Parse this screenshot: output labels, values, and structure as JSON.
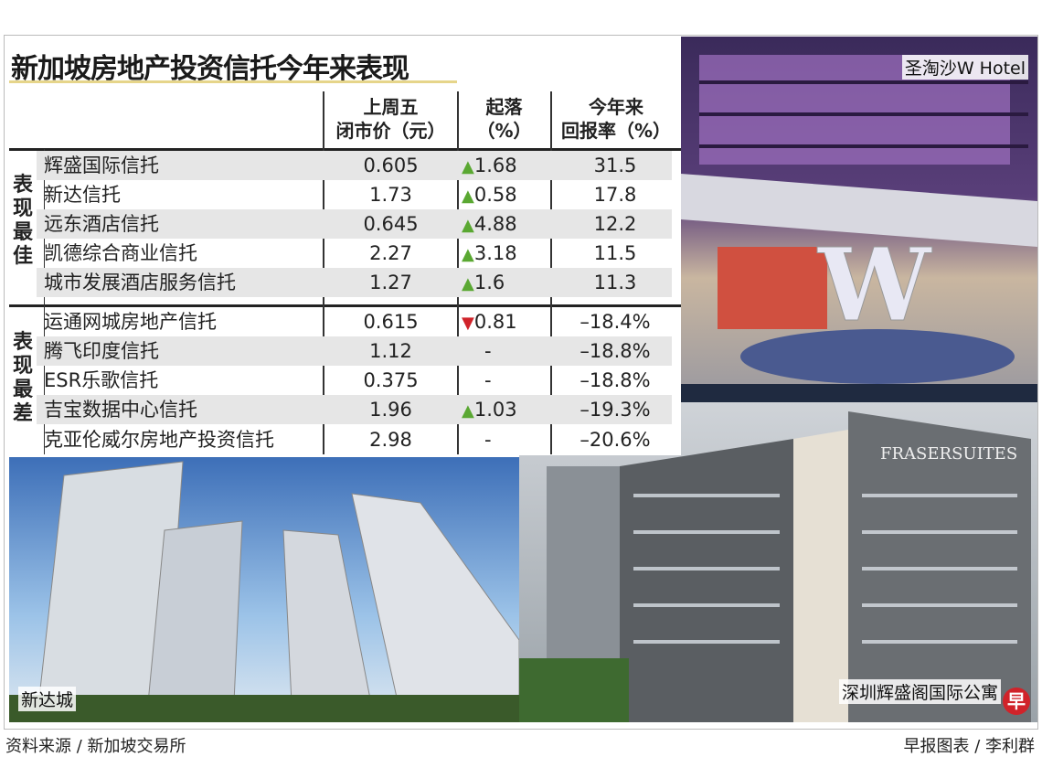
{
  "title": "新加坡房地产投资信托今年来表现",
  "chart_data": {
    "type": "table",
    "title": "新加坡房地产投资信托今年来表现",
    "columns": [
      "上周五\n闭市价（元）",
      "起落\n（%）",
      "今年来\n回报率（%）"
    ],
    "column_lines": [
      [
        "上周五",
        "闭市价（元）"
      ],
      [
        "起落",
        "（%）"
      ],
      [
        "今年来",
        "回报率（%）"
      ]
    ],
    "groups": [
      {
        "label": "表现最佳",
        "rows": [
          {
            "name": "辉盛国际信托",
            "price": "0.605",
            "direction": "up",
            "change": "1.68",
            "ytd": "31.5"
          },
          {
            "name": "新达信托",
            "price": "1.73",
            "direction": "up",
            "change": "0.58",
            "ytd": "17.8"
          },
          {
            "name": "远东酒店信托",
            "price": "0.645",
            "direction": "up",
            "change": "4.88",
            "ytd": "12.2"
          },
          {
            "name": "凯德综合商业信托",
            "price": "2.27",
            "direction": "up",
            "change": "3.18",
            "ytd": "11.5"
          },
          {
            "name": "城市发展酒店服务信托",
            "price": "1.27",
            "direction": "up",
            "change": "1.6",
            "ytd": "11.3"
          }
        ]
      },
      {
        "label": "表现最差",
        "rows": [
          {
            "name": "运通网城房地产信托",
            "price": "0.615",
            "direction": "down",
            "change": "0.81",
            "ytd": "–18.4%"
          },
          {
            "name": "腾飞印度信托",
            "price": "1.12",
            "direction": "none",
            "change": "-",
            "ytd": "–18.8%"
          },
          {
            "name": "ESR乐歌信托",
            "price": "0.375",
            "direction": "none",
            "change": "-",
            "ytd": "–18.8%"
          },
          {
            "name": "吉宝数据中心信托",
            "price": "1.96",
            "direction": "up",
            "change": "1.03",
            "ytd": "–19.3%"
          },
          {
            "name": "克亚伦威尔房地产投资信托",
            "price": "2.98",
            "direction": "none",
            "change": "-",
            "ytd": "–20.6%"
          }
        ]
      }
    ]
  },
  "icons": {
    "up": "▲",
    "down": "▼"
  },
  "colors": {
    "up": "#5aa832",
    "down": "#d0232a",
    "title_underline": "#e6d58a",
    "row_shade": "#e6e6e6"
  },
  "captions": {
    "w_hotel": "圣淘沙W Hotel",
    "suntec": "新达城",
    "fraser": "深圳辉盛阁国际公寓",
    "fraser_sign": "FRASER SUITES"
  },
  "footer": {
    "source": "资料来源 / 新加坡交易所",
    "credit": "早报图表 / 李利群",
    "logo": "早"
  }
}
